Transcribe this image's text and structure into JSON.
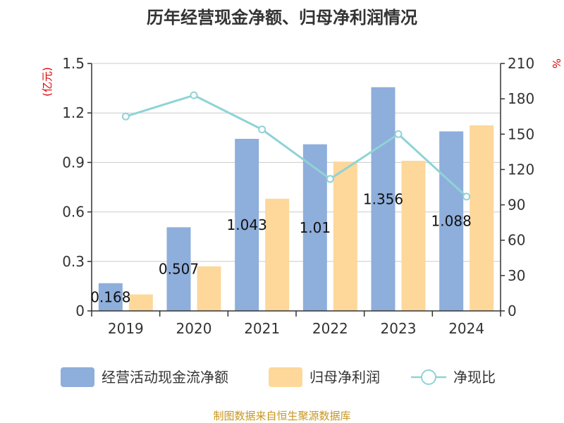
{
  "chart_data": {
    "type": "bar",
    "title": "历年经营现金净额、归母净利润情况",
    "categories": [
      "2019",
      "2020",
      "2021",
      "2022",
      "2023",
      "2024"
    ],
    "y_left": {
      "unit": "(亿元)",
      "ylim": [
        0,
        1.5
      ],
      "ticks": [
        "0",
        "0.3",
        "0.6",
        "0.9",
        "1.2",
        "1.5"
      ]
    },
    "y_right": {
      "unit": "%",
      "ylim": [
        0,
        210
      ],
      "ticks": [
        "0",
        "30",
        "60",
        "90",
        "120",
        "150",
        "180",
        "210"
      ]
    },
    "series": [
      {
        "name": "经营活动现金流净额",
        "kind": "bar",
        "axis": "left",
        "color": "#8eaedb",
        "values": [
          0.168,
          0.507,
          1.043,
          1.01,
          1.356,
          1.088
        ],
        "labels": [
          "0.168",
          "0.507",
          "1.043",
          "1.01",
          "1.356",
          "1.088"
        ]
      },
      {
        "name": "归母净利润",
        "kind": "bar",
        "axis": "left",
        "color": "#fdd89a",
        "values": [
          0.1,
          0.27,
          0.68,
          0.905,
          0.91,
          1.125
        ]
      },
      {
        "name": "净现比",
        "kind": "line",
        "axis": "right",
        "color": "#8fd3d6",
        "values": [
          165,
          183,
          154,
          112,
          150,
          97
        ]
      }
    ],
    "grid": true,
    "legend_position": "bottom"
  },
  "footer": {
    "source": "制图数据来自恒生聚源数据库"
  }
}
